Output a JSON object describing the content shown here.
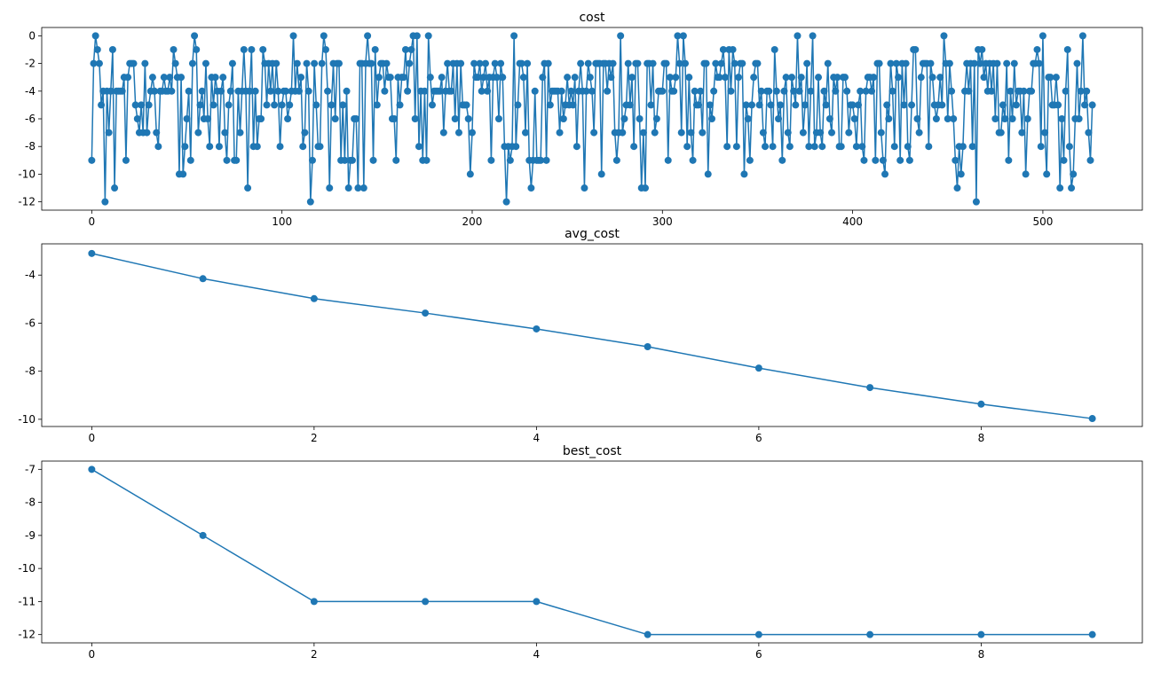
{
  "chart_data": [
    {
      "type": "line",
      "title": "cost",
      "color": "#1f77b4",
      "marker": "o",
      "x": [
        0,
        1,
        2,
        3,
        4,
        5,
        6,
        7,
        8,
        9,
        10,
        11,
        12,
        13,
        14,
        15,
        16,
        17,
        18,
        19,
        20,
        21,
        22,
        23,
        24,
        25,
        26,
        27,
        28,
        29,
        30,
        31,
        32,
        33,
        34,
        35,
        36,
        37,
        38,
        39,
        40,
        41,
        42,
        43,
        44,
        45,
        46,
        47,
        48,
        49,
        50,
        51,
        52,
        53,
        54,
        55,
        56,
        57,
        58,
        59,
        60,
        61,
        62,
        63,
        64,
        65,
        66,
        67,
        68,
        69,
        70,
        71,
        72,
        73,
        74,
        75,
        76,
        77,
        78,
        79,
        80,
        81,
        82,
        83,
        84,
        85,
        86,
        87,
        88,
        89,
        90,
        91,
        92,
        93,
        94,
        95,
        96,
        97,
        98,
        99,
        100,
        101,
        102,
        103,
        104,
        105,
        106,
        107,
        108,
        109,
        110,
        111,
        112,
        113,
        114,
        115,
        116,
        117,
        118,
        119,
        120,
        121,
        122,
        123,
        124,
        125,
        126,
        127,
        128,
        129,
        130,
        131,
        132,
        133,
        134,
        135,
        136,
        137,
        138,
        139,
        140,
        141,
        142,
        143,
        144,
        145,
        146,
        147,
        148,
        149,
        150,
        151,
        152,
        153,
        154,
        155,
        156,
        157,
        158,
        159,
        160,
        161,
        162,
        163,
        164,
        165,
        166,
        167,
        168,
        169,
        170,
        171,
        172,
        173,
        174,
        175,
        176,
        177,
        178,
        179,
        180,
        181,
        182,
        183,
        184,
        185,
        186,
        187,
        188,
        189,
        190,
        191,
        192,
        193,
        194,
        195,
        196,
        197,
        198,
        199,
        200,
        201,
        202,
        203,
        204,
        205,
        206,
        207,
        208,
        209,
        210,
        211,
        212,
        213,
        214,
        215,
        216,
        217,
        218,
        219,
        220,
        221,
        222,
        223,
        224,
        225,
        226,
        227,
        228,
        229,
        230,
        231,
        232,
        233,
        234,
        235,
        236,
        237,
        238,
        239,
        240,
        241,
        242,
        243,
        244,
        245,
        246,
        247,
        248,
        249,
        250,
        251,
        252,
        253,
        254,
        255,
        256,
        257,
        258,
        259,
        260,
        261,
        262,
        263,
        264,
        265,
        266,
        267,
        268,
        269,
        270,
        271,
        272,
        273,
        274,
        275,
        276,
        277,
        278,
        279,
        280,
        281,
        282,
        283,
        284,
        285,
        286,
        287,
        288,
        289,
        290,
        291,
        292,
        293,
        294,
        295,
        296,
        297,
        298,
        299,
        300,
        301,
        302,
        303,
        304,
        305,
        306,
        307,
        308,
        309,
        310,
        311,
        312,
        313,
        314,
        315,
        316,
        317,
        318,
        319,
        320,
        321,
        322,
        323,
        324,
        325,
        326,
        327,
        328,
        329,
        330,
        331,
        332,
        333,
        334,
        335,
        336,
        337,
        338,
        339,
        340,
        341,
        342,
        343,
        344,
        345,
        346,
        347,
        348,
        349,
        350,
        351,
        352,
        353,
        354,
        355,
        356,
        357,
        358,
        359,
        360,
        361,
        362,
        363,
        364,
        365,
        366,
        367,
        368,
        369,
        370,
        371,
        372,
        373,
        374,
        375,
        376,
        377,
        378,
        379,
        380,
        381,
        382,
        383,
        384,
        385,
        386,
        387,
        388,
        389,
        390,
        391,
        392,
        393,
        394,
        395,
        396,
        397,
        398,
        399,
        400,
        401,
        402,
        403,
        404,
        405,
        406,
        407,
        408,
        409,
        410,
        411,
        412,
        413,
        414,
        415,
        416,
        417,
        418,
        419,
        420,
        421,
        422,
        423,
        424,
        425,
        426,
        427,
        428,
        429,
        430,
        431,
        432,
        433,
        434,
        435,
        436,
        437,
        438,
        439,
        440,
        441,
        442,
        443,
        444,
        445,
        446,
        447,
        448,
        449,
        450,
        451,
        452,
        453,
        454,
        455,
        456,
        457,
        458,
        459,
        460,
        461,
        462,
        463,
        464,
        465,
        466,
        467,
        468,
        469,
        470,
        471,
        472,
        473,
        474,
        475,
        476,
        477,
        478,
        479,
        480,
        481,
        482,
        483,
        484,
        485,
        486,
        487,
        488,
        489,
        490,
        491,
        492,
        493,
        494,
        495,
        496,
        497,
        498,
        499,
        500,
        501,
        502,
        503,
        504,
        505,
        506,
        507,
        508,
        509,
        510,
        511,
        512,
        513,
        514,
        515,
        516,
        517,
        518,
        519,
        520,
        521,
        522,
        523,
        524,
        525,
        526
      ],
      "values": [
        -9,
        -2,
        0,
        -1,
        -2,
        -5,
        -4,
        -12,
        -4,
        -7,
        -4,
        -1,
        -11,
        -4,
        -4,
        -4,
        -4,
        -3,
        -9,
        -3,
        -2,
        -2,
        -2,
        -5,
        -6,
        -7,
        -5,
        -7,
        -2,
        -7,
        -5,
        -4,
        -3,
        -4,
        -7,
        -8,
        -4,
        -4,
        -3,
        -4,
        -4,
        -3,
        -4,
        -1,
        -2,
        -3,
        -10,
        -3,
        -10,
        -8,
        -6,
        -4,
        -9,
        -2,
        0,
        -1,
        -7,
        -5,
        -4,
        -6,
        -2,
        -6,
        -8,
        -3,
        -5,
        -3,
        -4,
        -8,
        -4,
        -3,
        -7,
        -9,
        -5,
        -4,
        -2,
        -9,
        -9,
        -4,
        -7,
        -4,
        -1,
        -4,
        -11,
        -4,
        -1,
        -8,
        -4,
        -8,
        -6,
        -6,
        -1,
        -2,
        -5,
        -2,
        -4,
        -2,
        -5,
        -2,
        -4,
        -8,
        -5,
        -4,
        -4,
        -6,
        -5,
        -4,
        0,
        -4,
        -2,
        -4,
        -3,
        -8,
        -7,
        -2,
        -4,
        -12,
        -9,
        -2,
        -5,
        -8,
        -8,
        -2,
        0,
        -1,
        -4,
        -11,
        -5,
        -2,
        -6,
        -2,
        -2,
        -9,
        -5,
        -9,
        -4,
        -11,
        -9,
        -9,
        -6,
        -6,
        -11,
        -2,
        -2,
        -11,
        -2,
        0,
        -2,
        -2,
        -9,
        -1,
        -5,
        -3,
        -2,
        -2,
        -4,
        -2,
        -3,
        -3,
        -6,
        -6,
        -9,
        -3,
        -5,
        -3,
        -3,
        -1,
        -4,
        -2,
        -1,
        0,
        -6,
        0,
        -8,
        -4,
        -9,
        -4,
        -9,
        0,
        -3,
        -5,
        -4,
        -4,
        -4,
        -4,
        -3,
        -7,
        -4,
        -2,
        -4,
        -4,
        -2,
        -6,
        -2,
        -7,
        -2,
        -5,
        -5,
        -5,
        -6,
        -10,
        -7,
        -2,
        -3,
        -3,
        -2,
        -4,
        -3,
        -2,
        -4,
        -3,
        -9,
        -3,
        -2,
        -3,
        -6,
        -2,
        -3,
        -8,
        -12,
        -8,
        -9,
        -8,
        0,
        -8,
        -5,
        -2,
        -2,
        -3,
        -7,
        -2,
        -9,
        -11,
        -9,
        -4,
        -9,
        -9,
        -9,
        -3,
        -2,
        -9,
        -2,
        -5,
        -4,
        -4,
        -4,
        -4,
        -7,
        -4,
        -6,
        -5,
        -3,
        -5,
        -4,
        -5,
        -3,
        -8,
        -4,
        -2,
        -4,
        -11,
        -4,
        -2,
        -3,
        -4,
        -7,
        -2,
        -2,
        -2,
        -10,
        -2,
        -2,
        -4,
        -2,
        -3,
        -2,
        -7,
        -9,
        -7,
        0,
        -7,
        -6,
        -5,
        -2,
        -5,
        -3,
        -8,
        -2,
        -2,
        -6,
        -11,
        -7,
        -11,
        -2,
        -2,
        -5,
        -2,
        -7,
        -6,
        -4,
        -4,
        -4,
        -2,
        -2,
        -9,
        -3,
        -4,
        -4,
        -3,
        0,
        -2,
        -7,
        0,
        -2,
        -8,
        -3,
        -7,
        -9,
        -4,
        -5,
        -5,
        -4,
        -7,
        -2,
        -2,
        -10,
        -5,
        -6,
        -4,
        -2,
        -3,
        -3,
        -2,
        -1,
        -3,
        -8,
        -1,
        -4,
        -1,
        -2,
        -8,
        -3,
        -2,
        -2,
        -10,
        -5,
        -6,
        -9,
        -5,
        -3,
        -2,
        -2,
        -5,
        -4,
        -7,
        -8,
        -4,
        -4,
        -5,
        -8,
        -1,
        -4,
        -6,
        -5,
        -9,
        -4,
        -3,
        -7,
        -8,
        -3,
        -4,
        -5,
        0,
        -4,
        -3,
        -7,
        -5,
        -2,
        -8,
        -4,
        0,
        -8,
        -7,
        -3,
        -7,
        -8,
        -4,
        -5,
        -2,
        -6,
        -7,
        -3,
        -4,
        -3,
        -8,
        -8,
        -3,
        -3,
        -4,
        -7,
        -5,
        -5,
        -6,
        -8,
        -5,
        -4,
        -8,
        -9,
        -4,
        -3,
        -3,
        -4,
        -3,
        -9,
        -2,
        -2,
        -7,
        -9,
        -10,
        -5,
        -6,
        -2,
        -4,
        -8,
        -2,
        -3,
        -9,
        -2,
        -5,
        -2,
        -8,
        -9,
        -5,
        -1,
        -1,
        -6,
        -7,
        -3,
        -2,
        -2,
        -2,
        -8,
        -2,
        -3,
        -5,
        -6,
        -5,
        -3,
        -5,
        0,
        -2,
        -6,
        -2,
        -4,
        -6,
        -9,
        -11,
        -8,
        -10,
        -8,
        -4,
        -2,
        -4,
        -2,
        -8,
        -2,
        -12,
        -1,
        -2,
        -1,
        -3,
        -2,
        -4,
        -2,
        -4,
        -2,
        -6,
        -2,
        -7,
        -7,
        -5,
        -6,
        -2,
        -9,
        -4,
        -6,
        -2,
        -5,
        -4,
        -4,
        -7,
        -4,
        -10,
        -6,
        -4,
        -4,
        -2,
        -2,
        -1,
        -2,
        -8,
        0,
        -7,
        -10,
        -3,
        -3,
        -5,
        -5,
        -3,
        -5,
        -11,
        -6,
        -9,
        -4,
        -1,
        -8,
        -11,
        -10,
        -6,
        -2,
        -6,
        -4,
        0,
        -5,
        -4,
        -7,
        -9,
        -5
      ],
      "xlim": [
        -26.3,
        552.3
      ],
      "ylim": [
        -12.6,
        0.6
      ],
      "xticks": [
        0,
        100,
        200,
        300,
        400,
        500
      ],
      "yticks": [
        0,
        -2,
        -4,
        -6,
        -8,
        -10,
        -12
      ]
    },
    {
      "type": "line",
      "title": "avg_cost",
      "color": "#1f77b4",
      "marker": "o",
      "x": [
        0,
        1,
        2,
        3,
        4,
        5,
        6,
        7,
        8,
        9
      ],
      "values": [
        -3.1,
        -4.15,
        -4.98,
        -5.58,
        -6.24,
        -6.98,
        -7.87,
        -8.68,
        -9.37,
        -9.97
      ],
      "xlim": [
        -0.45,
        9.45
      ],
      "ylim": [
        -10.3,
        -2.7
      ],
      "xticks": [
        0,
        2,
        4,
        6,
        8
      ],
      "yticks": [
        -4,
        -6,
        -8,
        -10
      ]
    },
    {
      "type": "line",
      "title": "best_cost",
      "color": "#1f77b4",
      "marker": "o",
      "x": [
        0,
        1,
        2,
        3,
        4,
        5,
        6,
        7,
        8,
        9
      ],
      "values": [
        -7,
        -9,
        -11,
        -11,
        -11,
        -12,
        -12,
        -12,
        -12,
        -12
      ],
      "xlim": [
        -0.45,
        9.45
      ],
      "ylim": [
        -12.25,
        -6.75
      ],
      "xticks": [
        0,
        2,
        4,
        6,
        8
      ],
      "yticks": [
        -7,
        -8,
        -9,
        -10,
        -11,
        -12
      ]
    }
  ]
}
